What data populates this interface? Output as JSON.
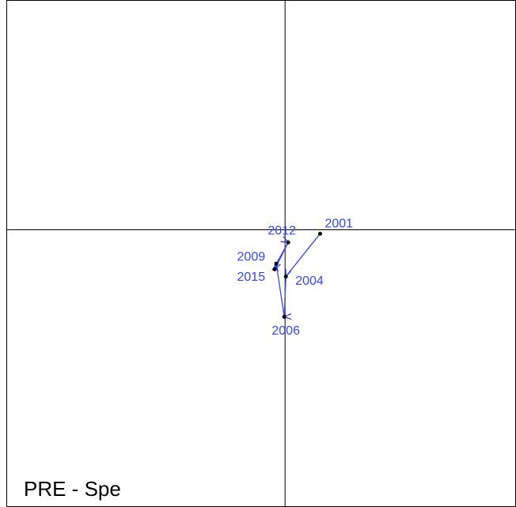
{
  "chart_data": {
    "type": "line",
    "title": "PRE  - Spe",
    "labels": [
      "2001",
      "2004",
      "2006",
      "2009",
      "2012",
      "2015"
    ],
    "x": [
      0.44,
      0.01,
      -0.01,
      -0.11,
      0.04,
      -0.13
    ],
    "values": [
      -0.05,
      -0.59,
      -1.1,
      -0.43,
      -0.16,
      -0.5
    ],
    "color": "#3344ff",
    "point_color": "#000000",
    "xlim": [
      -3.5,
      2.9
    ],
    "ylim": [
      -3.5,
      2.9
    ]
  }
}
